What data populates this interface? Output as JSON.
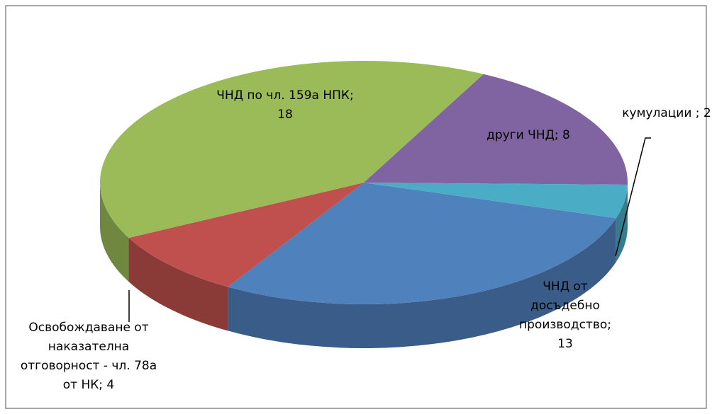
{
  "chart_data": {
    "type": "pie3d",
    "values": [
      13,
      4,
      18,
      8,
      2
    ],
    "value_labels": [
      "ЧНД от досъдебно производство; 13",
      "Освобождаване от наказателна отговорност - чл. 78а от НК; 4",
      "ЧНД по чл. 159а НПК; 18",
      "други ЧНД; 8",
      "кумулации ; 2"
    ],
    "colors": [
      "#4f81bd",
      "#c0504d",
      "#9bbb59",
      "#8064a2",
      "#4bacc6"
    ]
  }
}
